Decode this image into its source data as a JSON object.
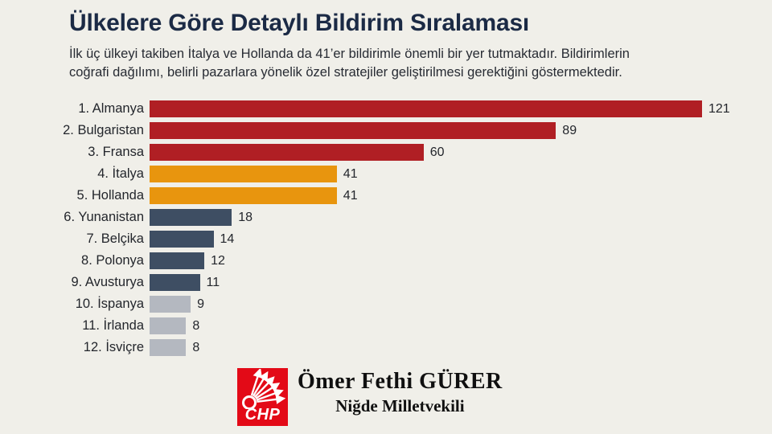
{
  "header": {
    "title": "Ülkelere Göre Detaylı Bildirim Sıralaması",
    "subtitle_line1": "İlk üç ülkeyi takiben İtalya ve Hollanda da 41’er bildirimle önemli bir yer tutmaktadır. Bildirimlerin",
    "subtitle_line2": "coğrafi dağılımı, belirli pazarlara yönelik özel stratejiler geliştirilmesi gerektiğini göstermektedir."
  },
  "chart_data": {
    "type": "bar",
    "orientation": "horizontal",
    "title": "Ülkelere Göre Detaylı Bildirim Sıralaması",
    "categories": [
      "1. Almanya",
      "2. Bulgaristan",
      "3. Fransa",
      "4. İtalya",
      "5. Hollanda",
      "6. Yunanistan",
      "7. Belçika",
      "8. Polonya",
      "9. Avusturya",
      "10. İspanya",
      "11. İrlanda",
      "12. İsviçre"
    ],
    "values": [
      121,
      89,
      60,
      41,
      41,
      18,
      14,
      12,
      11,
      9,
      8,
      8
    ],
    "value_labels": [
      "121",
      "89",
      "60",
      "41",
      "41",
      "18",
      "14",
      "12",
      "11",
      "9",
      "8",
      "8"
    ],
    "bar_colors": [
      "red",
      "red",
      "red",
      "orange",
      "orange",
      "slate",
      "slate",
      "slate",
      "slate",
      "gray",
      "gray",
      "gray"
    ],
    "palette": {
      "red": "#b01f24",
      "orange": "#e8950e",
      "slate": "#3e4e63",
      "gray": "#b4b8c0"
    },
    "xlim": [
      0,
      121
    ],
    "grid": false,
    "legend": "none",
    "value_label_position": "end-of-bar",
    "background": "#f0efe9"
  },
  "footer": {
    "logo_text": "CHP",
    "logo_color": "#e30a17",
    "name": "Ömer Fethi GÜRER",
    "role": "Niğde Milletvekili"
  },
  "colors": {
    "background": "#f0efe9",
    "title_text": "#1b2a45",
    "body_text": "#23262c"
  }
}
